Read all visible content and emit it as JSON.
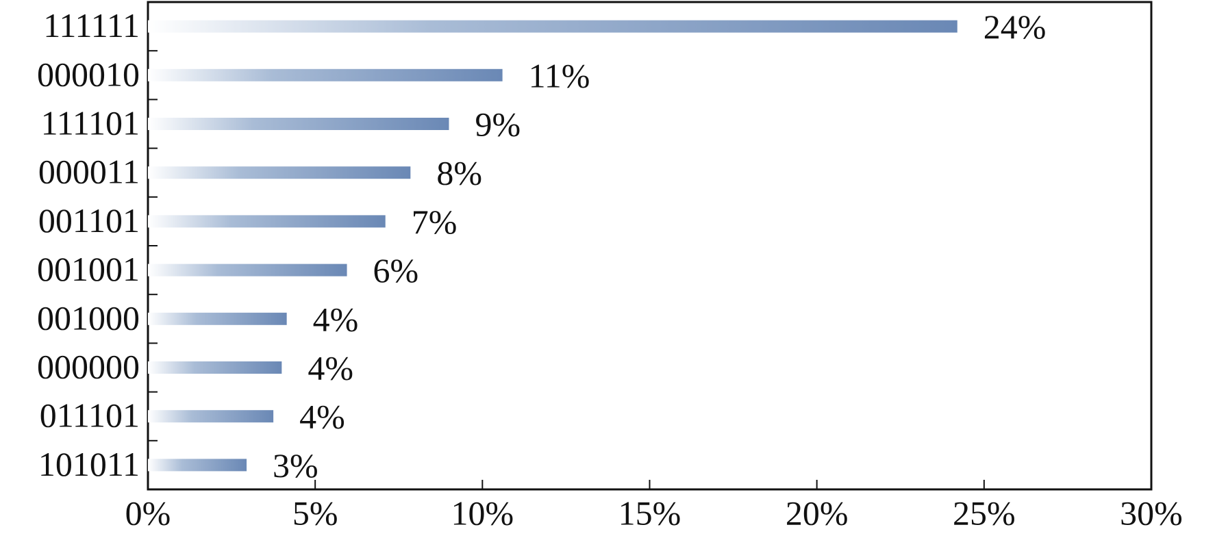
{
  "chart_data": {
    "type": "barh",
    "categories": [
      "111111",
      "000010",
      "111101",
      "000011",
      "001101",
      "001001",
      "001000",
      "000000",
      "011101",
      "101011"
    ],
    "values": [
      24.2,
      10.6,
      9.0,
      7.85,
      7.1,
      5.95,
      4.15,
      4.0,
      3.75,
      2.95
    ],
    "value_labels": [
      "24%",
      "11%",
      "9%",
      "8%",
      "7%",
      "6%",
      "4%",
      "4%",
      "4%",
      "3%"
    ],
    "color": "#6a88b5",
    "xlim": [
      0,
      30
    ],
    "xticks": [
      {
        "value": 0,
        "label": "0%"
      },
      {
        "value": 5,
        "label": "5%"
      },
      {
        "value": 10,
        "label": "10%"
      },
      {
        "value": 15,
        "label": "15%"
      },
      {
        "value": 20,
        "label": "20%"
      },
      {
        "value": 25,
        "label": "25%"
      },
      {
        "value": 30,
        "label": "30%"
      }
    ]
  }
}
